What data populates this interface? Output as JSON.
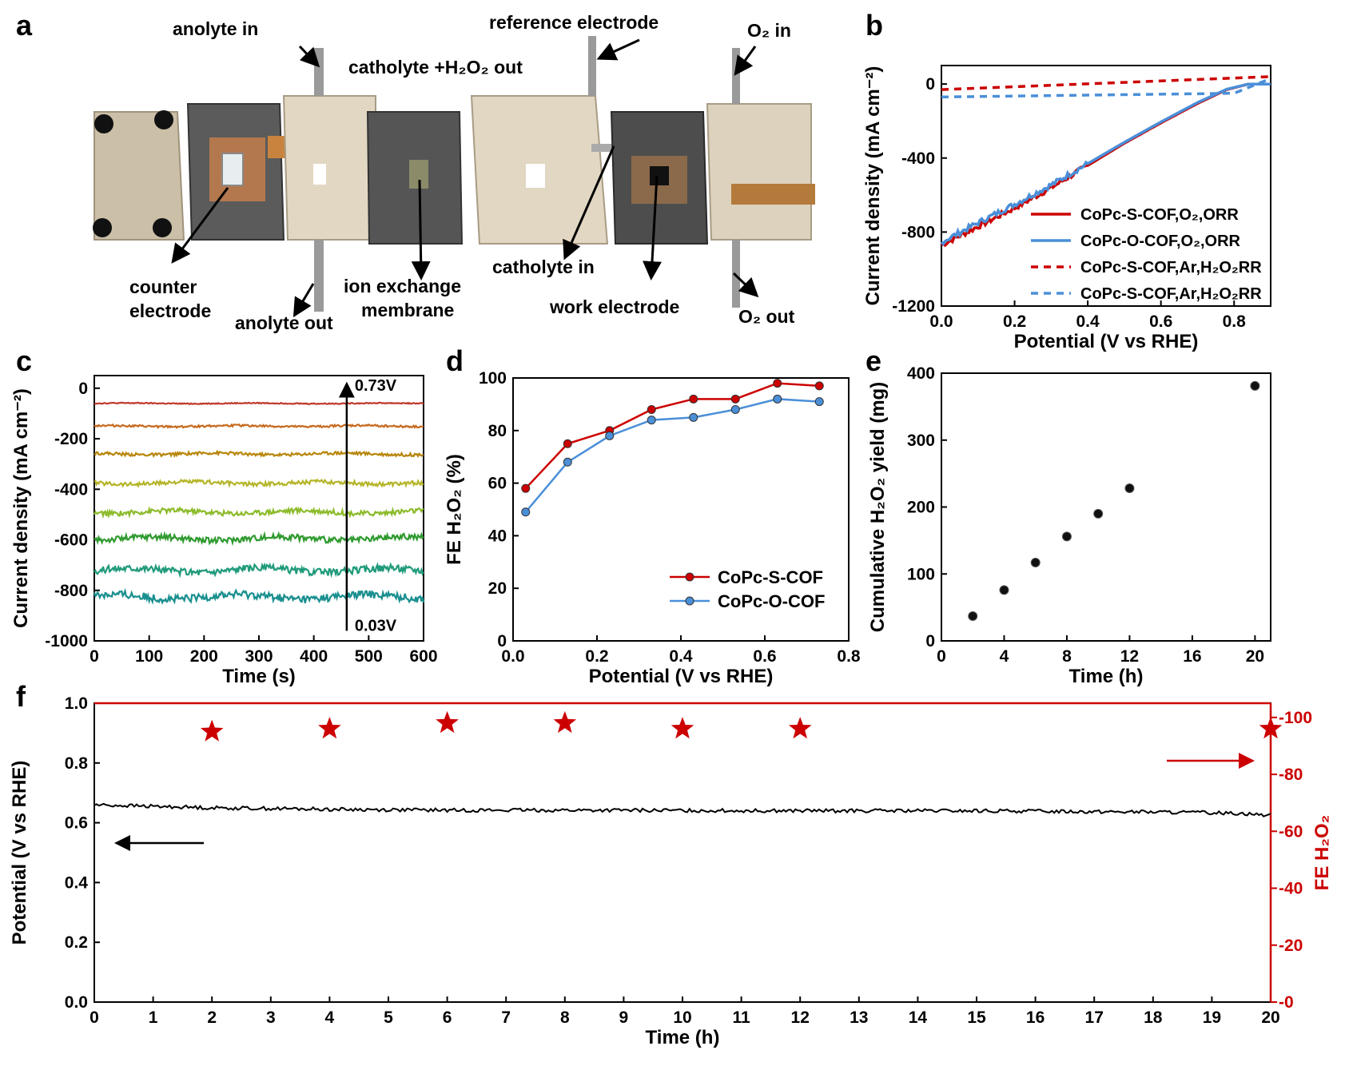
{
  "panel_letters": {
    "a": "a",
    "b": "b",
    "c": "c",
    "d": "d",
    "e": "e",
    "f": "f"
  },
  "panel_a": {
    "labels": {
      "anolyte_in": "anolyte in",
      "catholyte_out": "catholyte +H₂O₂ out",
      "reference_electrode": "reference electrode",
      "o2_in": "O₂ in",
      "counter_electrode_1": "counter",
      "counter_electrode_2": "electrode",
      "anolyte_out": "anolyte out",
      "ion_exchange_1": "ion exchange",
      "ion_exchange_2": "membrane",
      "catholyte_in": "catholyte in",
      "work_electrode": "work electrode",
      "o2_out": "O₂ out"
    },
    "colors": {
      "plate_light": "#d8cdb9",
      "plate_dark": "#5a5a5a",
      "copper": "#b87333"
    }
  },
  "chart_data": [
    {
      "panel": "b",
      "type": "line",
      "xlabel": "Potential (V vs RHE)",
      "ylabel": "Current density (mA cm⁻²)",
      "xlim": [
        0.0,
        0.9
      ],
      "ylim": [
        -1200,
        100
      ],
      "xticks": [
        "0.0",
        "0.2",
        "0.4",
        "0.6",
        "0.8"
      ],
      "yticks": [
        "0",
        "-400",
        "-800",
        "-1200"
      ],
      "legend_position": "bottom-right",
      "series": [
        {
          "name": "CoPc-S-COF,O₂,ORR",
          "color": "#cc0000",
          "style": "solid",
          "x": [
            0.0,
            0.1,
            0.2,
            0.3,
            0.4,
            0.5,
            0.6,
            0.7,
            0.78,
            0.84,
            0.9
          ],
          "y": [
            -870,
            -770,
            -670,
            -560,
            -440,
            -320,
            -210,
            -105,
            -30,
            0,
            0
          ]
        },
        {
          "name": "CoPc-O-COF,O₂,ORR",
          "color": "#4a8fd8",
          "style": "solid",
          "x": [
            0.0,
            0.1,
            0.2,
            0.3,
            0.4,
            0.5,
            0.6,
            0.7,
            0.78,
            0.84,
            0.9
          ],
          "y": [
            -855,
            -750,
            -650,
            -545,
            -430,
            -315,
            -205,
            -100,
            -28,
            0,
            0
          ]
        },
        {
          "name": "CoPc-S-COF,Ar,H₂O₂RR",
          "color": "#cc0000",
          "style": "dashed",
          "x": [
            0.0,
            0.9
          ],
          "y": [
            -30,
            40
          ]
        },
        {
          "name": "CoPc-S-COF,Ar,H₂O₂RR",
          "color": "#4a8fd8",
          "style": "dashed",
          "x": [
            0.0,
            0.8,
            0.9
          ],
          "y": [
            -70,
            -50,
            30
          ]
        }
      ]
    },
    {
      "panel": "c",
      "type": "line",
      "xlabel": "Time (s)",
      "ylabel": "Current density (mA cm⁻²)",
      "xlim": [
        0,
        600
      ],
      "ylim": [
        -1000,
        50
      ],
      "xticks": [
        "0",
        "100",
        "200",
        "300",
        "400",
        "500",
        "600"
      ],
      "yticks": [
        "0",
        "-200",
        "-400",
        "-600",
        "-800",
        "-1000"
      ],
      "annotations": [
        "0.73V",
        "0.03V"
      ],
      "series": [
        {
          "color": "#c0392b",
          "level": -60,
          "noise": 2
        },
        {
          "color": "#c66a1f",
          "level": -150,
          "noise": 4
        },
        {
          "color": "#b8860b",
          "level": -260,
          "noise": 6
        },
        {
          "color": "#b5b52a",
          "level": -375,
          "noise": 8
        },
        {
          "color": "#8cbb2a",
          "level": -490,
          "noise": 10
        },
        {
          "color": "#2f9a2f",
          "level": -595,
          "noise": 12
        },
        {
          "color": "#1f9a7a",
          "level": -720,
          "noise": 14
        },
        {
          "color": "#1a8f8f",
          "level": -825,
          "noise": 16
        }
      ]
    },
    {
      "panel": "d",
      "type": "line",
      "xlabel": "Potential (V vs RHE)",
      "ylabel": "FE H₂O₂ (%)",
      "xlim": [
        0.0,
        0.8
      ],
      "ylim": [
        0,
        100
      ],
      "xticks": [
        "0.0",
        "0.2",
        "0.4",
        "0.6",
        "0.8"
      ],
      "yticks": [
        "0",
        "20",
        "40",
        "60",
        "80",
        "100"
      ],
      "legend_position": "bottom-right",
      "series": [
        {
          "name": "CoPc-S-COF",
          "color": "#cc0000",
          "x": [
            0.03,
            0.13,
            0.23,
            0.33,
            0.43,
            0.53,
            0.63,
            0.73
          ],
          "y": [
            58,
            75,
            80,
            88,
            92,
            92,
            98,
            97
          ]
        },
        {
          "name": "CoPc-O-COF",
          "color": "#4a8fd8",
          "x": [
            0.03,
            0.13,
            0.23,
            0.33,
            0.43,
            0.53,
            0.63,
            0.73
          ],
          "y": [
            49,
            68,
            78,
            84,
            85,
            88,
            92,
            91
          ]
        }
      ]
    },
    {
      "panel": "e",
      "type": "scatter",
      "xlabel": "Time (h)",
      "ylabel": "Cumulative H₂O₂ yield (mg)",
      "xlim": [
        0,
        21
      ],
      "ylim": [
        0,
        400
      ],
      "xticks": [
        "0",
        "4",
        "8",
        "12",
        "16",
        "20"
      ],
      "yticks": [
        "0",
        "100",
        "200",
        "300",
        "400"
      ],
      "series": [
        {
          "color": "#000000",
          "x": [
            2,
            4,
            6,
            8,
            10,
            12,
            20
          ],
          "y": [
            37,
            76,
            117,
            156,
            190,
            228,
            381
          ]
        }
      ]
    },
    {
      "panel": "f",
      "type": "line",
      "xlabel": "Time (h)",
      "ylabel": "Potential (V vs RHE)",
      "ylabel_right": "FE H₂O₂",
      "xlim": [
        0,
        20
      ],
      "ylim": [
        0.0,
        1.0
      ],
      "ylim_right": [
        0,
        105
      ],
      "xticks": [
        "0",
        "1",
        "2",
        "3",
        "4",
        "5",
        "6",
        "7",
        "8",
        "9",
        "10",
        "11",
        "12",
        "13",
        "14",
        "15",
        "16",
        "17",
        "18",
        "19",
        "20"
      ],
      "yticks": [
        "0.0",
        "0.2",
        "0.4",
        "0.6",
        "0.8",
        "1.0"
      ],
      "yticks_right": [
        "0",
        "20",
        "40",
        "60",
        "80",
        "100"
      ],
      "right_axis_color": "#cc0000",
      "series": [
        {
          "color": "#000000",
          "axis": "left",
          "x": [
            0,
            2,
            4,
            6,
            8,
            10,
            12,
            14,
            16,
            18,
            19.5,
            20
          ],
          "y": [
            0.66,
            0.65,
            0.645,
            0.642,
            0.642,
            0.641,
            0.64,
            0.64,
            0.639,
            0.636,
            0.632,
            0.625
          ]
        },
        {
          "color": "#cc0000",
          "axis": "right",
          "marker": "star",
          "x": [
            2,
            4,
            6,
            8,
            10,
            12,
            20
          ],
          "y": [
            95,
            96,
            98,
            98,
            96,
            96,
            96
          ]
        }
      ]
    }
  ]
}
